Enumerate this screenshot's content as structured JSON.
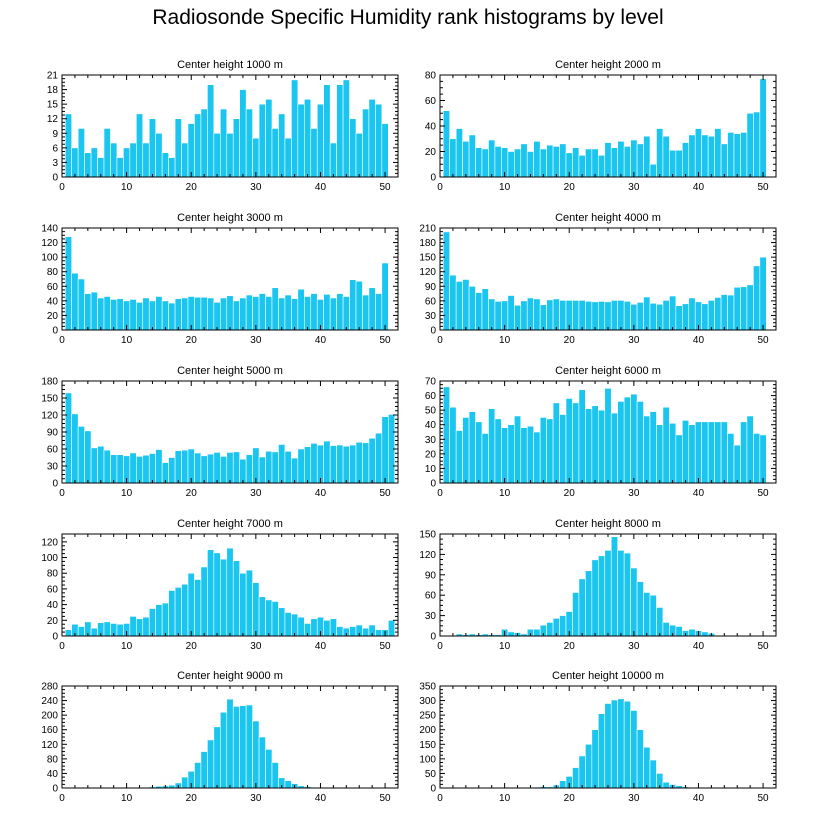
{
  "title": "Radiosonde Specific Humidity rank histograms by level",
  "colors": {
    "bar": "#1ac6ef",
    "axis": "#000000",
    "background": "#ffffff"
  },
  "chart_data": [
    {
      "type": "bar",
      "title": "Center height 1000 m",
      "xlim": [
        0,
        52
      ],
      "ylim": [
        0,
        21
      ],
      "xticks": [
        0,
        10,
        20,
        30,
        40,
        50
      ],
      "yticks": [
        0,
        3,
        6,
        9,
        12,
        15,
        18,
        21
      ],
      "x": [
        1,
        2,
        3,
        4,
        5,
        6,
        7,
        8,
        9,
        10,
        11,
        12,
        13,
        14,
        15,
        16,
        17,
        18,
        19,
        20,
        21,
        22,
        23,
        24,
        25,
        26,
        27,
        28,
        29,
        30,
        31,
        32,
        33,
        34,
        35,
        36,
        37,
        38,
        39,
        40,
        41,
        42,
        43,
        44,
        45,
        46,
        47,
        48,
        49,
        50,
        51
      ],
      "values": [
        13,
        6,
        10,
        5,
        6,
        4,
        10,
        7,
        4,
        6,
        7,
        13,
        7,
        12,
        9,
        5,
        4,
        12,
        7,
        11,
        13,
        14,
        19,
        9,
        14,
        9,
        12,
        18,
        14,
        8,
        15,
        16,
        10,
        13,
        8,
        20,
        15,
        16,
        10,
        15,
        19,
        7,
        19,
        20,
        12,
        9,
        14,
        16,
        15,
        11,
        0
      ]
    },
    {
      "type": "bar",
      "title": "Center height 2000 m",
      "xlim": [
        0,
        52
      ],
      "ylim": [
        0,
        80
      ],
      "xticks": [
        0,
        10,
        20,
        30,
        40,
        50
      ],
      "yticks": [
        0,
        20,
        40,
        60,
        80
      ],
      "x": [
        1,
        2,
        3,
        4,
        5,
        6,
        7,
        8,
        9,
        10,
        11,
        12,
        13,
        14,
        15,
        16,
        17,
        18,
        19,
        20,
        21,
        22,
        23,
        24,
        25,
        26,
        27,
        28,
        29,
        30,
        31,
        32,
        33,
        34,
        35,
        36,
        37,
        38,
        39,
        40,
        41,
        42,
        43,
        44,
        45,
        46,
        47,
        48,
        49,
        50,
        51
      ],
      "values": [
        52,
        30,
        38,
        28,
        33,
        23,
        22,
        29,
        24,
        23,
        20,
        22,
        26,
        20,
        28,
        22,
        25,
        24,
        26,
        19,
        23,
        17,
        22,
        22,
        17,
        27,
        23,
        28,
        24,
        29,
        26,
        32,
        10,
        38,
        32,
        21,
        21,
        27,
        33,
        38,
        33,
        32,
        38,
        26,
        35,
        34,
        35,
        50,
        51,
        77,
        0
      ]
    },
    {
      "type": "bar",
      "title": "Center height 3000 m",
      "xlim": [
        0,
        52
      ],
      "ylim": [
        0,
        140
      ],
      "xticks": [
        0,
        10,
        20,
        30,
        40,
        50
      ],
      "yticks": [
        0,
        20,
        40,
        60,
        80,
        100,
        120,
        140
      ],
      "x": [
        1,
        2,
        3,
        4,
        5,
        6,
        7,
        8,
        9,
        10,
        11,
        12,
        13,
        14,
        15,
        16,
        17,
        18,
        19,
        20,
        21,
        22,
        23,
        24,
        25,
        26,
        27,
        28,
        29,
        30,
        31,
        32,
        33,
        34,
        35,
        36,
        37,
        38,
        39,
        40,
        41,
        42,
        43,
        44,
        45,
        46,
        47,
        48,
        49,
        50,
        51
      ],
      "values": [
        128,
        78,
        70,
        50,
        52,
        44,
        46,
        42,
        43,
        40,
        42,
        38,
        44,
        40,
        46,
        40,
        37,
        43,
        44,
        46,
        45,
        45,
        44,
        38,
        44,
        47,
        40,
        44,
        48,
        46,
        50,
        46,
        58,
        44,
        48,
        43,
        56,
        46,
        50,
        42,
        49,
        44,
        50,
        46,
        69,
        67,
        48,
        58,
        50,
        92,
        0
      ]
    },
    {
      "type": "bar",
      "title": "Center height 4000 m",
      "xlim": [
        0,
        52
      ],
      "ylim": [
        0,
        210
      ],
      "xticks": [
        0,
        10,
        20,
        30,
        40,
        50
      ],
      "yticks": [
        0,
        30,
        60,
        90,
        120,
        150,
        180,
        210
      ],
      "x": [
        1,
        2,
        3,
        4,
        5,
        6,
        7,
        8,
        9,
        10,
        11,
        12,
        13,
        14,
        15,
        16,
        17,
        18,
        19,
        20,
        21,
        22,
        23,
        24,
        25,
        26,
        27,
        28,
        29,
        30,
        31,
        32,
        33,
        34,
        35,
        36,
        37,
        38,
        39,
        40,
        41,
        42,
        43,
        44,
        45,
        46,
        47,
        48,
        49,
        50,
        51
      ],
      "values": [
        202,
        113,
        100,
        104,
        90,
        77,
        85,
        64,
        59,
        60,
        71,
        51,
        60,
        66,
        64,
        52,
        62,
        64,
        61,
        61,
        61,
        61,
        59,
        58,
        59,
        58,
        61,
        61,
        59,
        53,
        57,
        68,
        55,
        53,
        61,
        70,
        50,
        54,
        66,
        58,
        54,
        61,
        67,
        73,
        72,
        88,
        89,
        93,
        132,
        150,
        0
      ]
    },
    {
      "type": "bar",
      "title": "Center height 5000 m",
      "xlim": [
        0,
        52
      ],
      "ylim": [
        0,
        180
      ],
      "xticks": [
        0,
        10,
        20,
        30,
        40,
        50
      ],
      "yticks": [
        0,
        30,
        60,
        90,
        120,
        150,
        180
      ],
      "x": [
        1,
        2,
        3,
        4,
        5,
        6,
        7,
        8,
        9,
        10,
        11,
        12,
        13,
        14,
        15,
        16,
        17,
        18,
        19,
        20,
        21,
        22,
        23,
        24,
        25,
        26,
        27,
        28,
        29,
        30,
        31,
        32,
        33,
        34,
        35,
        36,
        37,
        38,
        39,
        40,
        41,
        42,
        43,
        44,
        45,
        46,
        47,
        48,
        49,
        50,
        51
      ],
      "values": [
        159,
        122,
        100,
        92,
        62,
        65,
        58,
        50,
        50,
        48,
        53,
        47,
        49,
        52,
        59,
        36,
        45,
        57,
        58,
        60,
        53,
        48,
        51,
        54,
        47,
        54,
        55,
        42,
        50,
        62,
        46,
        56,
        55,
        68,
        56,
        44,
        60,
        64,
        70,
        67,
        74,
        66,
        67,
        65,
        67,
        72,
        71,
        79,
        88,
        117,
        121
      ]
    },
    {
      "type": "bar",
      "title": "Center height 6000 m",
      "xlim": [
        0,
        52
      ],
      "ylim": [
        0,
        70
      ],
      "xticks": [
        0,
        10,
        20,
        30,
        40,
        50
      ],
      "yticks": [
        0,
        10,
        20,
        30,
        40,
        50,
        60,
        70
      ],
      "x": [
        1,
        2,
        3,
        4,
        5,
        6,
        7,
        8,
        9,
        10,
        11,
        12,
        13,
        14,
        15,
        16,
        17,
        18,
        19,
        20,
        21,
        22,
        23,
        24,
        25,
        26,
        27,
        28,
        29,
        30,
        31,
        32,
        33,
        34,
        35,
        36,
        37,
        38,
        39,
        40,
        41,
        42,
        43,
        44,
        45,
        46,
        47,
        48,
        49,
        50,
        51
      ],
      "values": [
        66,
        52,
        36,
        45,
        49,
        42,
        34,
        51,
        44,
        38,
        40,
        46,
        38,
        39,
        35,
        45,
        44,
        55,
        47,
        58,
        55,
        64,
        51,
        53,
        50,
        65,
        48,
        56,
        59,
        61,
        56,
        46,
        49,
        40,
        52,
        41,
        33,
        43,
        40,
        42,
        42,
        42,
        42,
        42,
        34,
        26,
        42,
        46,
        34,
        33,
        0
      ]
    },
    {
      "type": "bar",
      "title": "Center height 7000 m",
      "xlim": [
        0,
        52
      ],
      "ylim": [
        0,
        130
      ],
      "xticks": [
        0,
        10,
        20,
        30,
        40,
        50
      ],
      "yticks": [
        0,
        20,
        40,
        60,
        80,
        100,
        120
      ],
      "x": [
        1,
        2,
        3,
        4,
        5,
        6,
        7,
        8,
        9,
        10,
        11,
        12,
        13,
        14,
        15,
        16,
        17,
        18,
        19,
        20,
        21,
        22,
        23,
        24,
        25,
        26,
        27,
        28,
        29,
        30,
        31,
        32,
        33,
        34,
        35,
        36,
        37,
        38,
        39,
        40,
        41,
        42,
        43,
        44,
        45,
        46,
        47,
        48,
        49,
        50,
        51
      ],
      "values": [
        8,
        15,
        12,
        18,
        10,
        17,
        18,
        16,
        15,
        16,
        25,
        22,
        24,
        35,
        40,
        42,
        58,
        62,
        66,
        80,
        72,
        88,
        110,
        106,
        98,
        112,
        96,
        80,
        84,
        68,
        50,
        46,
        44,
        36,
        30,
        28,
        24,
        16,
        22,
        24,
        20,
        22,
        12,
        10,
        12,
        14,
        10,
        14,
        8,
        8,
        20
      ]
    },
    {
      "type": "bar",
      "title": "Center height 8000 m",
      "xlim": [
        0,
        52
      ],
      "ylim": [
        0,
        150
      ],
      "xticks": [
        0,
        10,
        20,
        30,
        40,
        50
      ],
      "yticks": [
        0,
        30,
        60,
        90,
        120,
        150
      ],
      "x": [
        1,
        2,
        3,
        4,
        5,
        6,
        7,
        8,
        9,
        10,
        11,
        12,
        13,
        14,
        15,
        16,
        17,
        18,
        19,
        20,
        21,
        22,
        23,
        24,
        25,
        26,
        27,
        28,
        29,
        30,
        31,
        32,
        33,
        34,
        35,
        36,
        37,
        38,
        39,
        40,
        41,
        42,
        43,
        44,
        45,
        46,
        47,
        48,
        49,
        50,
        51
      ],
      "values": [
        0,
        0,
        3,
        2,
        3,
        2,
        3,
        2,
        2,
        10,
        6,
        5,
        3,
        10,
        10,
        16,
        20,
        26,
        30,
        36,
        64,
        84,
        96,
        112,
        118,
        126,
        146,
        126,
        122,
        100,
        80,
        64,
        60,
        42,
        20,
        16,
        14,
        8,
        10,
        8,
        6,
        4,
        0,
        0,
        0,
        0,
        0,
        0,
        0,
        0,
        0
      ]
    },
    {
      "type": "bar",
      "title": "Center height 9000 m",
      "xlim": [
        0,
        52
      ],
      "ylim": [
        0,
        280
      ],
      "xticks": [
        0,
        10,
        20,
        30,
        40,
        50
      ],
      "yticks": [
        0,
        40,
        80,
        120,
        160,
        200,
        240,
        280
      ],
      "x": [
        1,
        2,
        3,
        4,
        5,
        6,
        7,
        8,
        9,
        10,
        11,
        12,
        13,
        14,
        15,
        16,
        17,
        18,
        19,
        20,
        21,
        22,
        23,
        24,
        25,
        26,
        27,
        28,
        29,
        30,
        31,
        32,
        33,
        34,
        35,
        36,
        37,
        38,
        39,
        40,
        41,
        42,
        43,
        44,
        45,
        46,
        47,
        48,
        49,
        50,
        51
      ],
      "values": [
        0,
        0,
        0,
        0,
        0,
        0,
        0,
        0,
        0,
        0,
        0,
        0,
        2,
        3,
        5,
        6,
        8,
        14,
        30,
        46,
        70,
        100,
        132,
        168,
        208,
        244,
        224,
        226,
        228,
        184,
        140,
        106,
        70,
        28,
        20,
        12,
        6,
        4,
        0,
        0,
        0,
        0,
        0,
        0,
        0,
        0,
        0,
        0,
        0,
        0,
        0
      ]
    },
    {
      "type": "bar",
      "title": "Center height 10000 m",
      "xlim": [
        0,
        52
      ],
      "ylim": [
        0,
        350
      ],
      "xticks": [
        0,
        10,
        20,
        30,
        40,
        50
      ],
      "yticks": [
        0,
        50,
        100,
        150,
        200,
        250,
        300,
        350
      ],
      "x": [
        1,
        2,
        3,
        4,
        5,
        6,
        7,
        8,
        9,
        10,
        11,
        12,
        13,
        14,
        15,
        16,
        17,
        18,
        19,
        20,
        21,
        22,
        23,
        24,
        25,
        26,
        27,
        28,
        29,
        30,
        31,
        32,
        33,
        34,
        35,
        36,
        37,
        38,
        39,
        40,
        41,
        42,
        43,
        44,
        45,
        46,
        47,
        48,
        49,
        50,
        51
      ],
      "values": [
        0,
        0,
        0,
        0,
        0,
        0,
        0,
        0,
        0,
        0,
        0,
        0,
        0,
        0,
        3,
        5,
        4,
        10,
        25,
        40,
        70,
        110,
        150,
        200,
        255,
        290,
        302,
        306,
        298,
        266,
        200,
        140,
        96,
        50,
        20,
        12,
        8,
        4,
        0,
        0,
        0,
        0,
        0,
        0,
        0,
        0,
        0,
        0,
        0,
        0,
        0
      ]
    }
  ]
}
